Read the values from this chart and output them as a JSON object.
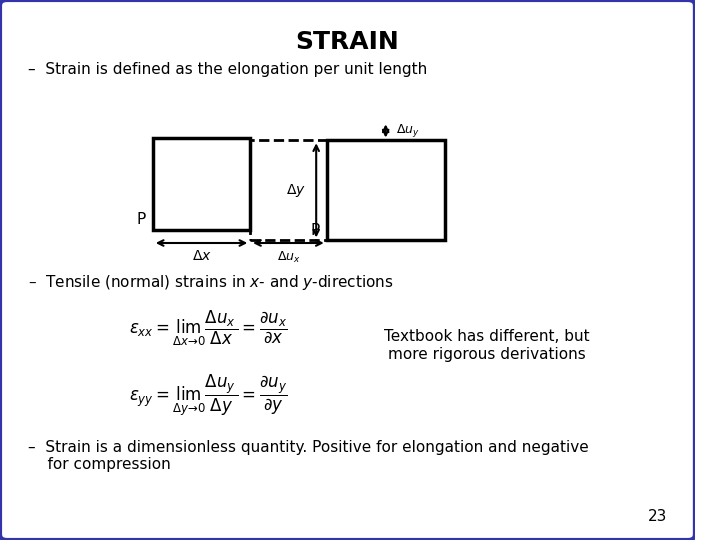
{
  "title": "STRAIN",
  "background_color": "#ffffff",
  "border_color": "#3333aa",
  "bullet1": "–  Strain is defined as the elongation per unit length",
  "bullet2": "–  Tensile (normal) strains in $x$- and $y$-directions",
  "bullet3": "–  Strain is a dimensionless quantity. Positive for elongation and negative\n    for compression",
  "page_number": "23",
  "textbook_note": "Textbook has different, but\nmore rigorous derivations",
  "eq1": "$\\varepsilon_{xx} = \\lim_{\\Delta x \\to 0} \\dfrac{\\Delta u_x}{\\Delta x} = \\dfrac{\\partial u_x}{\\partial x}$",
  "eq2": "$\\varepsilon_{yy} = \\lim_{\\Delta y \\to 0} \\dfrac{\\Delta u_y}{\\Delta y} = \\dfrac{\\partial u_y}{\\partial y}$"
}
